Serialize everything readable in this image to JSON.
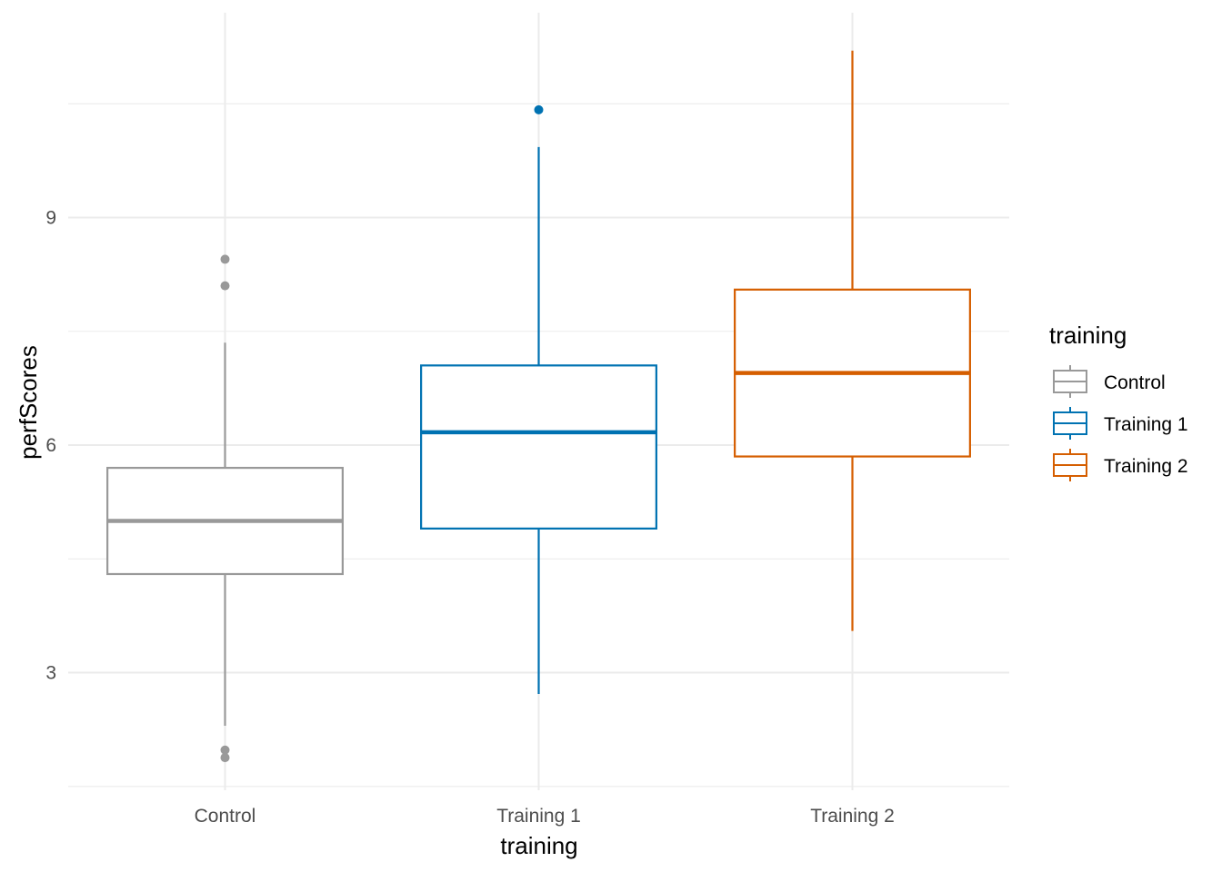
{
  "chart_data": {
    "type": "boxplot",
    "xlabel": "training",
    "ylabel": "perfScores",
    "ylim": [
      1.45,
      11.7
    ],
    "yticks": [
      3,
      6,
      9
    ],
    "grid": true,
    "legend": {
      "title": "training",
      "position": "right",
      "entries": [
        "Control",
        "Training 1",
        "Training 2"
      ]
    },
    "categories": [
      "Control",
      "Training 1",
      "Training 2"
    ],
    "series": [
      {
        "name": "Control",
        "color": "#999999",
        "whisker_low": 2.3,
        "q1": 4.3,
        "median": 5.0,
        "q3": 5.7,
        "whisker_high": 7.35,
        "outliers": [
          8.45,
          8.1,
          1.98,
          1.88
        ]
      },
      {
        "name": "Training 1",
        "color": "#0072B2",
        "whisker_low": 2.72,
        "q1": 4.9,
        "median": 6.17,
        "q3": 7.05,
        "whisker_high": 9.93,
        "outliers": [
          10.42
        ]
      },
      {
        "name": "Training 2",
        "color": "#D55E00",
        "whisker_low": 3.55,
        "q1": 5.85,
        "median": 6.95,
        "q3": 8.05,
        "whisker_high": 11.2,
        "outliers": []
      }
    ]
  }
}
